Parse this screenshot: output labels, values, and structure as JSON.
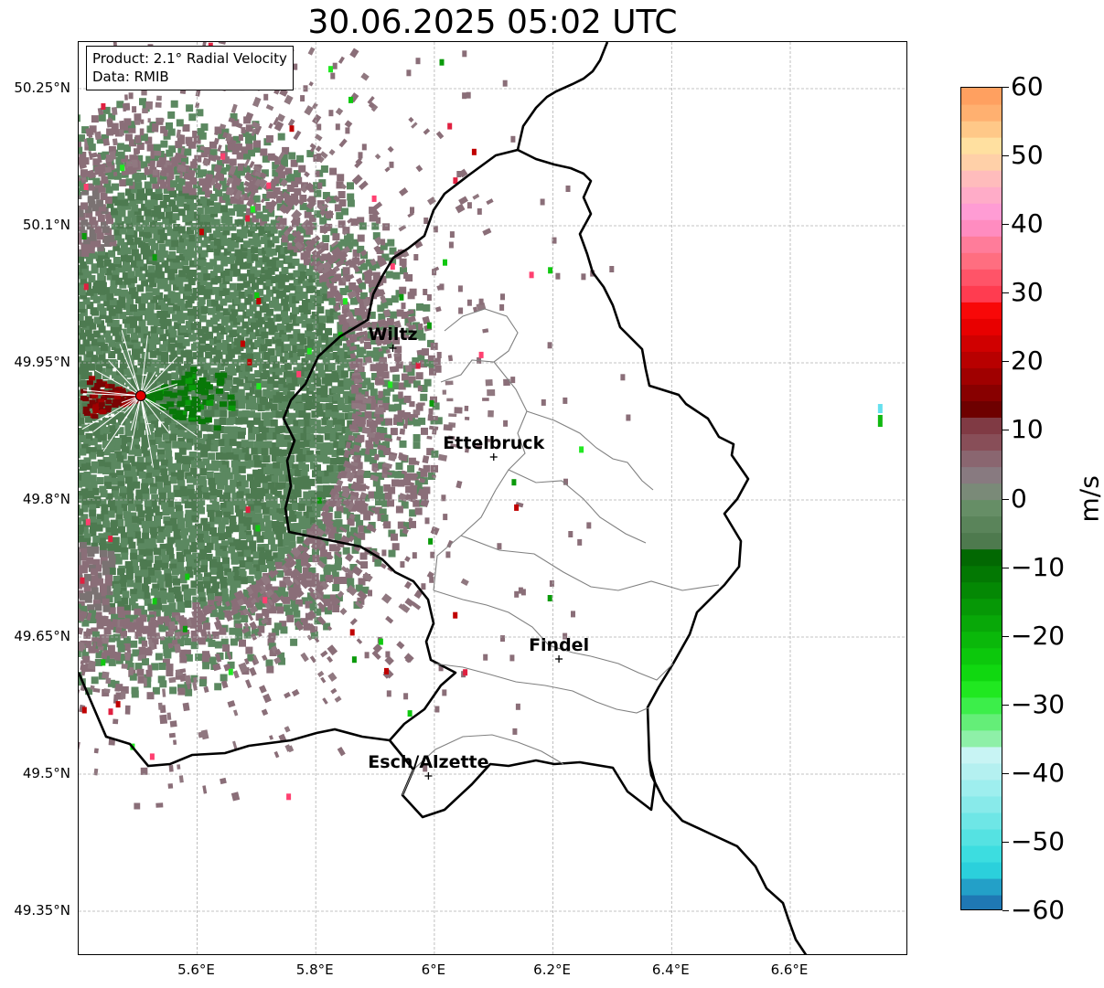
{
  "title": "30.06.2025 05:02 UTC",
  "info": {
    "product": "Product: 2.1° Radial Velocity",
    "data_source": "Data: RMIB"
  },
  "lat_labels": [
    "50.25°N",
    "50.1°N",
    "49.95°N",
    "49.8°N",
    "49.65°N",
    "49.5°N",
    "49.35°N"
  ],
  "lon_labels": [
    "5.6°E",
    "5.8°E",
    "6°E",
    "6.2°E",
    "6.4°E",
    "6.6°E"
  ],
  "cities": [
    {
      "name": "Wiltz",
      "lon": 5.93,
      "lat": 49.966
    },
    {
      "name": "Ettelbruck",
      "lon": 6.1,
      "lat": 49.847
    },
    {
      "name": "Findel",
      "lon": 6.21,
      "lat": 49.626
    },
    {
      "name": "Esch/Alzette",
      "lon": 5.99,
      "lat": 49.498
    }
  ],
  "radar_site": {
    "lon": 5.505,
    "lat": 49.914
  },
  "colorbar": {
    "unit": "m/s",
    "min": -60,
    "max": 60,
    "tick_labels": [
      "60",
      "50",
      "40",
      "30",
      "20",
      "10",
      "0",
      "−10",
      "−20",
      "−30",
      "−40",
      "−50",
      "−60"
    ],
    "colors": [
      "#1f78b4",
      "#23a0c8",
      "#2bd0dc",
      "#3cdde0",
      "#55e2e2",
      "#6ee6e6",
      "#88eaea",
      "#9eeeee",
      "#b4f0f0",
      "#c8f4f4",
      "#8ef0a8",
      "#64ee78",
      "#3cee4a",
      "#20e820",
      "#10d810",
      "#0cc80c",
      "#0ab80a",
      "#08a808",
      "#069806",
      "#048804",
      "#037803",
      "#026802",
      "#4e7a4e",
      "#5a845a",
      "#668e66",
      "#7a8a78",
      "#887a80",
      "#8a6670",
      "#884e58",
      "#803a44",
      "#6e0000",
      "#880000",
      "#a00000",
      "#b80000",
      "#d00000",
      "#e80000",
      "#f80808",
      "#ff3c50",
      "#ff5468",
      "#ff6e80",
      "#ff7c9a",
      "#ff8cc0",
      "#ff9cd4",
      "#ffacc8",
      "#ffbcbc",
      "#ffd0a8",
      "#ffe0a0",
      "#ffc888",
      "#ffb070",
      "#ffa060"
    ]
  }
}
